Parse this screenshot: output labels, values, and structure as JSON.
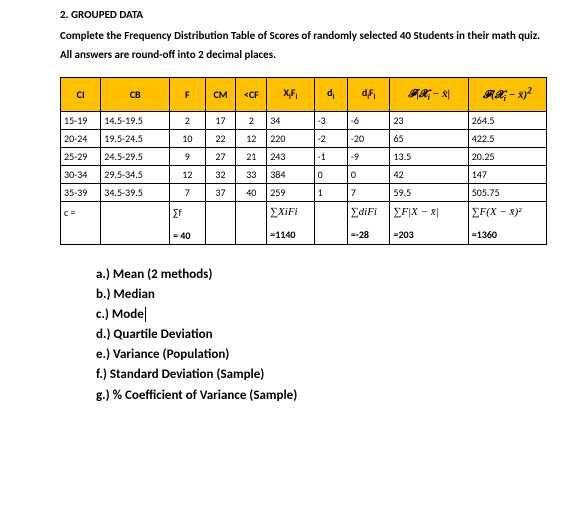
{
  "header": {
    "title": "2. GROUPED DATA",
    "line1": "Complete the Frequency Distribution Table of Scores of randomly selected 40 Students in their math quiz.",
    "line2": "All answers are round-off into 2 decimal places."
  },
  "table": {
    "headers": {
      "ci": "CI",
      "cb": "CB",
      "f": "F",
      "cm": "CM",
      "cf": "<CF",
      "xifi": "XiFi",
      "di": "di",
      "difi": "diFi",
      "fxx": "F|X − x̄|",
      "fxx2": "F(X − x̄)²"
    },
    "rows": [
      {
        "ci": "15-19",
        "cb": "14.5-19.5",
        "f": "2",
        "cm": "17",
        "cf": "2",
        "xifi": "34",
        "di": "-3",
        "difi": "-6",
        "fxx": "23",
        "fxx2": "264.5"
      },
      {
        "ci": "20-24",
        "cb": "19.5-24.5",
        "f": "10",
        "cm": "22",
        "cf": "12",
        "xifi": "220",
        "di": "-2",
        "difi": "-20",
        "fxx": "65",
        "fxx2": "422.5"
      },
      {
        "ci": "25-29",
        "cb": "24.5-29.5",
        "f": "9",
        "cm": "27",
        "cf": "21",
        "xifi": "243",
        "di": "-1",
        "difi": "-9",
        "fxx": "13.5",
        "fxx2": "20.25"
      },
      {
        "ci": "30-34",
        "cb": "29.5-34.5",
        "f": "12",
        "cm": "32",
        "cf": "33",
        "xifi": "384",
        "di": "0",
        "difi": "0",
        "fxx": "42",
        "fxx2": "147"
      },
      {
        "ci": "35-39",
        "cb": "34.5-39.5",
        "f": "7",
        "cm": "37",
        "cf": "40",
        "xifi": "259",
        "di": "1",
        "difi": "7",
        "fxx": "59.5",
        "fxx2": "505.75"
      }
    ],
    "sum": {
      "label": "c =",
      "f_top": "∑f",
      "f_bot": "= 40",
      "xifi_top": "∑XiFi",
      "xifi_bot": "=1140",
      "difi_top": "∑diFi",
      "difi_bot": "=-28",
      "fxx_top": "∑F|X − x̄|",
      "fxx_bot": "=203",
      "fxx2_top": "∑F(X − x̄)²",
      "fxx2_bot": "=1360"
    }
  },
  "questions": {
    "a": "a.) Mean (2 methods)",
    "b": "b.) Median",
    "c": "c.) Mode",
    "d": "d.) Quartile Deviation",
    "e": "e.) Variance (Population)",
    "f": "f.) Standard Deviation (Sample)",
    "g": "g.) % Coefficient of Variance (Sample)"
  },
  "colors": {
    "header_bg": "#ffc000",
    "border": "#000000",
    "text": "#000000",
    "background": "#ffffff"
  }
}
